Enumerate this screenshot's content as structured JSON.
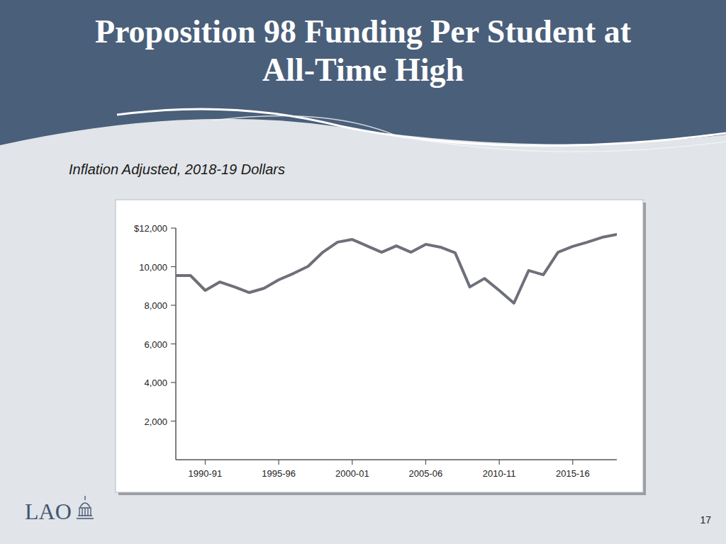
{
  "chart_data": {
    "type": "line",
    "title": "Proposition 98 Funding Per Student at All-Time High",
    "subtitle": "Inflation Adjusted, 2018-19 Dollars",
    "categories": [
      null,
      null,
      "1990-91",
      null,
      null,
      null,
      null,
      "1995-96",
      null,
      null,
      null,
      null,
      "2000-01",
      null,
      null,
      null,
      null,
      "2005-06",
      null,
      null,
      null,
      null,
      "2010-11",
      null,
      null,
      null,
      null,
      "2015-16",
      null,
      null,
      null
    ],
    "values": [
      9540,
      9540,
      8770,
      9210,
      8950,
      8660,
      8880,
      9320,
      9650,
      10020,
      10750,
      11270,
      11410,
      11080,
      10750,
      11080,
      10750,
      11160,
      11010,
      10720,
      8950,
      9390,
      8770,
      8110,
      9800,
      9580,
      10750,
      11050,
      11270,
      11520,
      11670
    ],
    "color": "#6e7079",
    "ylim": [
      0,
      12000
    ],
    "yticks": [
      {
        "value": 2000,
        "label": "2,000"
      },
      {
        "value": 4000,
        "label": "4,000"
      },
      {
        "value": 6000,
        "label": "6,000"
      },
      {
        "value": 8000,
        "label": "8,000"
      },
      {
        "value": 10000,
        "label": "10,000"
      },
      {
        "value": 12000,
        "label": "$12,000"
      }
    ],
    "grid": false
  },
  "slide": {
    "logo": "LAO",
    "page_number": "17"
  }
}
